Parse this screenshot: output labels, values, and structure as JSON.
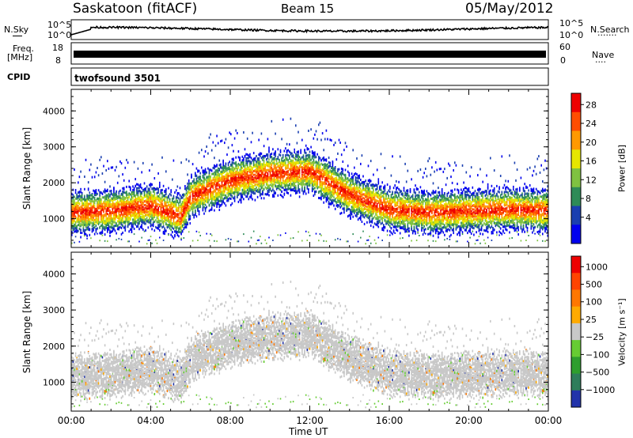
{
  "header": {
    "station": "Saskatoon (fitACF)",
    "beam": "Beam 15",
    "date": "05/May/2012"
  },
  "panels": {
    "nsky_label": "N.Sky",
    "nsearch_label": "N.Search",
    "freq_label_line1": "Freq.",
    "freq_label_line2": "[MHz]",
    "nave_label": "Nave",
    "cpid_label": "CPID",
    "cpid_value": "twofsound 3501",
    "noise_scale_top": "10^5",
    "noise_scale_bottom": "10^0",
    "freq_left_top": "18",
    "freq_left_bottom": "8",
    "nave_right_top": "60",
    "nave_right_bottom": "0"
  },
  "colors": {
    "power_scale": [
      "#0000ee",
      "#1a3fb0",
      "#2e8b57",
      "#7fc241",
      "#e6e600",
      "#ff9900",
      "#ff4d00",
      "#ee0000"
    ],
    "velocity_scale": [
      "#2233aa",
      "#2e7d5b",
      "#2e9e2e",
      "#66cc33",
      "#c8c8c8",
      "#ffaa00",
      "#ff7700",
      "#ff4400",
      "#ee0000"
    ]
  },
  "chart_data": [
    {
      "type": "heatmap",
      "panel": "power",
      "xlabel": "Time UT",
      "ylabel": "Slant Range [km]",
      "x_ticks": [
        "00:00",
        "04:00",
        "08:00",
        "12:00",
        "16:00",
        "20:00",
        "00:00"
      ],
      "x_range_hours": [
        0,
        24
      ],
      "y_ticks": [
        1000,
        2000,
        3000,
        4000
      ],
      "ylim": [
        200,
        4600
      ],
      "colorbar_label": "Power [dB]",
      "colorbar_ticks": [
        "4",
        "8",
        "12",
        "16",
        "20",
        "24",
        "28"
      ],
      "scatter_band_center_km": [
        {
          "t": 0,
          "range": 1150
        },
        {
          "t": 2,
          "range": 1200
        },
        {
          "t": 4,
          "range": 1350
        },
        {
          "t": 5.5,
          "range": 1050
        },
        {
          "t": 6,
          "range": 1600
        },
        {
          "t": 8,
          "range": 2050
        },
        {
          "t": 10,
          "range": 2250
        },
        {
          "t": 12,
          "range": 2300
        },
        {
          "t": 14,
          "range": 1650
        },
        {
          "t": 16,
          "range": 1250
        },
        {
          "t": 18,
          "range": 1150
        },
        {
          "t": 20,
          "range": 1200
        },
        {
          "t": 22,
          "range": 1250
        },
        {
          "t": 24,
          "range": 1200
        }
      ]
    },
    {
      "type": "heatmap",
      "panel": "velocity",
      "xlabel": "Time UT",
      "ylabel": "Slant Range [km]",
      "x_ticks": [
        "00:00",
        "04:00",
        "08:00",
        "12:00",
        "16:00",
        "20:00",
        "00:00"
      ],
      "x_range_hours": [
        0,
        24
      ],
      "y_ticks": [
        1000,
        2000,
        3000,
        4000
      ],
      "ylim": [
        200,
        4600
      ],
      "colorbar_label": "Velocity [m s⁻¹]",
      "colorbar_ticks": [
        "1000",
        "500",
        "100",
        "25",
        "−25",
        "−100",
        "−500",
        "−1000"
      ]
    }
  ]
}
